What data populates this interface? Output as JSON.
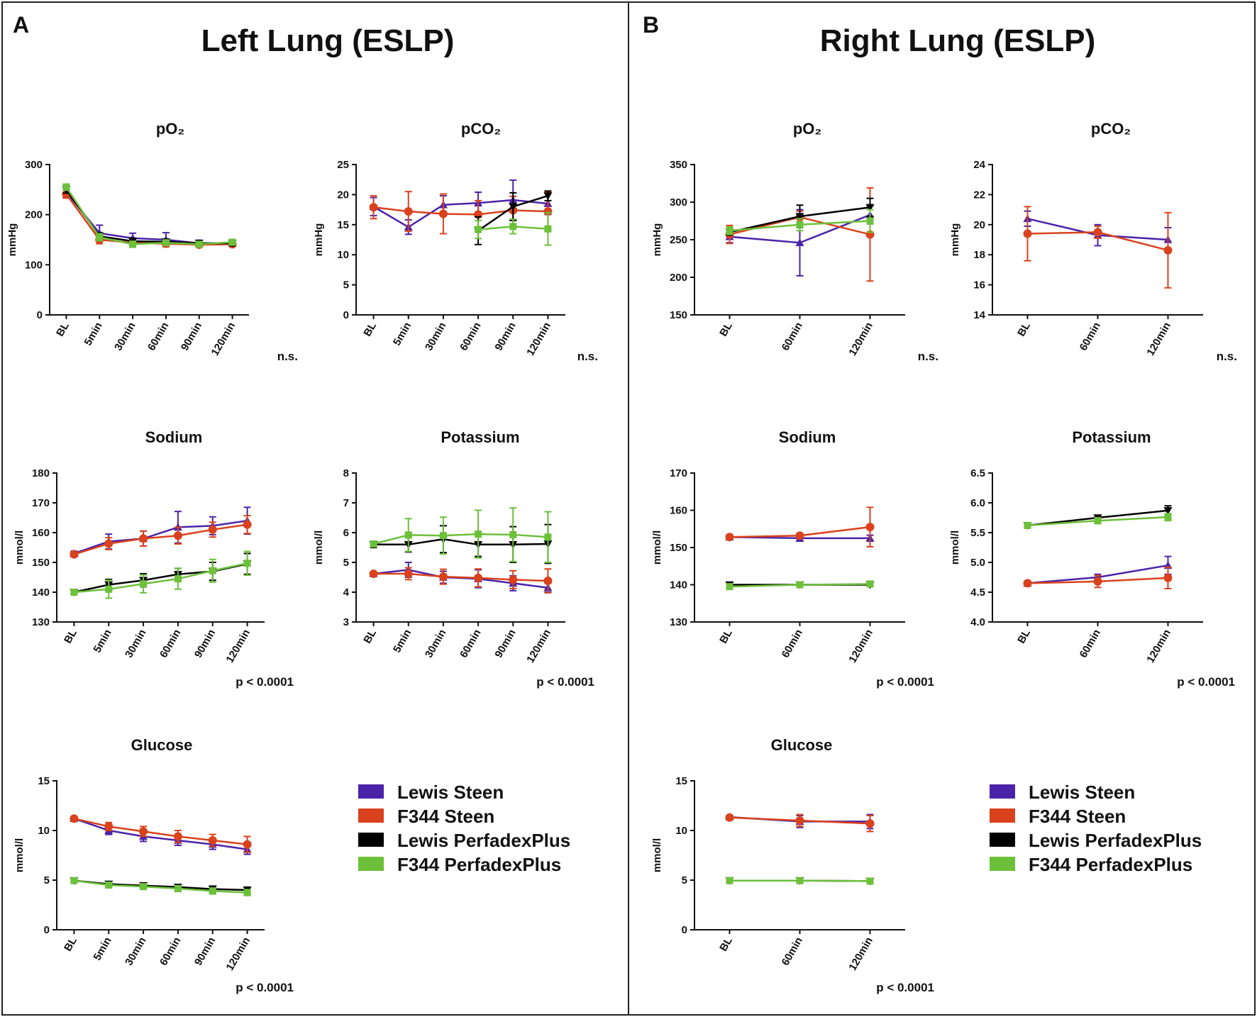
{
  "panels": [
    {
      "letter": "A",
      "title": "Left Lung (ESLP)"
    },
    {
      "letter": "B",
      "title": "Right Lung (ESLP)"
    }
  ],
  "legend": [
    {
      "label": "Lewis Steen",
      "color": "#4b23a8"
    },
    {
      "label": "F344 Steen",
      "color": "#d9421c"
    },
    {
      "label": "Lewis PerfadexPlus",
      "color": "#000000"
    },
    {
      "label": "F344 PerfadexPlus",
      "color": "#6cc03a"
    }
  ],
  "chart_data": [
    {
      "id": "A-po2",
      "panel": "A",
      "type": "line",
      "title": "pO₂",
      "ylabel": "mmHg",
      "sig": "n.s.",
      "categories": [
        "BL",
        "5min",
        "30min",
        "60min",
        "90min",
        "120min"
      ],
      "ylim": [
        0,
        300
      ],
      "yticks": [
        0,
        100,
        200,
        300
      ],
      "series": [
        {
          "name": "Lewis Steen",
          "color": "#4b23a8",
          "marker": "triangle",
          "values": [
            245,
            163,
            153,
            150,
            143,
            143
          ],
          "errors": [
            10,
            16,
            10,
            14,
            6,
            5
          ]
        },
        {
          "name": "F344 Steen",
          "color": "#d9421c",
          "marker": "circle",
          "values": [
            241,
            150,
            144,
            142,
            140,
            141
          ],
          "errors": [
            8,
            8,
            6,
            6,
            5,
            4
          ]
        },
        {
          "name": "Lewis PerfadexPlus",
          "color": "#000000",
          "marker": "triangle-down",
          "values": [
            250,
            157,
            147,
            146,
            143,
            143
          ],
          "errors": [
            7,
            7,
            6,
            5,
            5,
            5
          ]
        },
        {
          "name": "F344 PerfadexPlus",
          "color": "#6cc03a",
          "marker": "square",
          "values": [
            255,
            155,
            141,
            144,
            141,
            145
          ],
          "errors": [
            6,
            7,
            6,
            5,
            4,
            4
          ]
        }
      ]
    },
    {
      "id": "A-pco2",
      "panel": "A",
      "type": "line",
      "title": "pCO₂",
      "ylabel": "mmHg",
      "sig": "n.s.",
      "categories": [
        "BL",
        "5min",
        "30min",
        "60min",
        "90min",
        "120min"
      ],
      "ylim": [
        0,
        25
      ],
      "yticks": [
        0,
        5,
        10,
        15,
        20,
        25
      ],
      "series": [
        {
          "name": "Lewis Steen",
          "color": "#4b23a8",
          "marker": "triangle",
          "values": [
            18,
            14.6,
            18.3,
            18.6,
            19.1,
            18.5
          ],
          "errors": [
            1.5,
            1.2,
            1.5,
            1.8,
            3.3,
            1.8
          ]
        },
        {
          "name": "F344 Steen",
          "color": "#d9421c",
          "marker": "circle",
          "values": [
            17.9,
            17.2,
            16.8,
            16.7,
            17.4,
            17.2
          ],
          "errors": [
            1.9,
            3.3,
            3.3,
            2.3,
            2.3,
            3.2
          ]
        },
        {
          "name": "Lewis PerfadexPlus",
          "color": "#000000",
          "marker": "triangle-down",
          "values": [
            null,
            null,
            null,
            14.0,
            18.0,
            19.8
          ],
          "errors": [
            0,
            0,
            0,
            2.3,
            2.3,
            0.8
          ]
        },
        {
          "name": "F344 PerfadexPlus",
          "color": "#6cc03a",
          "marker": "square",
          "values": [
            null,
            null,
            null,
            14.2,
            14.7,
            14.3
          ],
          "errors": [
            0,
            0,
            0,
            1.5,
            1.2,
            2.7
          ]
        }
      ]
    },
    {
      "id": "B-po2",
      "panel": "B",
      "type": "line",
      "title": "pO₂",
      "ylabel": "mmHg",
      "sig": "n.s.",
      "categories": [
        "BL",
        "60min",
        "120min"
      ],
      "ylim": [
        150,
        350
      ],
      "yticks": [
        150,
        200,
        250,
        300,
        350
      ],
      "series": [
        {
          "name": "Lewis Steen",
          "color": "#4b23a8",
          "marker": "triangle",
          "values": [
            254,
            246,
            283
          ],
          "errors": [
            8,
            44,
            12
          ]
        },
        {
          "name": "F344 Steen",
          "color": "#d9421c",
          "marker": "circle",
          "values": [
            257,
            280,
            257
          ],
          "errors": [
            12,
            8,
            62
          ]
        },
        {
          "name": "Lewis PerfadexPlus",
          "color": "#000000",
          "marker": "triangle-down",
          "values": [
            260,
            281,
            293
          ],
          "errors": [
            4,
            15,
            12
          ]
        },
        {
          "name": "F344 PerfadexPlus",
          "color": "#6cc03a",
          "marker": "square",
          "values": [
            262,
            270,
            275
          ],
          "errors": [
            5,
            8,
            15
          ]
        }
      ]
    },
    {
      "id": "B-pco2",
      "panel": "B",
      "type": "line",
      "title": "pCO₂",
      "ylabel": "mmHg",
      "sig": "n.s.",
      "categories": [
        "BL",
        "60min",
        "120min"
      ],
      "ylim": [
        14,
        24
      ],
      "yticks": [
        14,
        16,
        18,
        20,
        22,
        24
      ],
      "series": [
        {
          "name": "Lewis Steen",
          "color": "#4b23a8",
          "marker": "triangle",
          "values": [
            20.4,
            19.3,
            19.0
          ],
          "errors": [
            0.5,
            0.7,
            0.8
          ]
        },
        {
          "name": "F344 Steen",
          "color": "#d9421c",
          "marker": "circle",
          "values": [
            19.4,
            19.5,
            18.3
          ],
          "errors": [
            1.8,
            0.4,
            2.5
          ]
        }
      ]
    },
    {
      "id": "A-sodium",
      "panel": "A",
      "type": "line",
      "title": "Sodium",
      "ylabel": "mmol/l",
      "sig": "p < 0.0001",
      "categories": [
        "BL",
        "5min",
        "30min",
        "60min",
        "90min",
        "120min"
      ],
      "ylim": [
        130,
        180
      ],
      "yticks": [
        130,
        140,
        150,
        160,
        170,
        180
      ],
      "series": [
        {
          "name": "Lewis Steen",
          "color": "#4b23a8",
          "marker": "triangle",
          "values": [
            153,
            157,
            158,
            161.8,
            162.3,
            164
          ],
          "errors": [
            0.8,
            2.5,
            2.5,
            5.3,
            3.0,
            4.5
          ]
        },
        {
          "name": "F344 Steen",
          "color": "#d9421c",
          "marker": "circle",
          "values": [
            152.7,
            156.3,
            158,
            159,
            161,
            162.7
          ],
          "errors": [
            0.8,
            2.0,
            2.5,
            2.8,
            2.5,
            3.0
          ]
        },
        {
          "name": "Lewis PerfadexPlus",
          "color": "#000000",
          "marker": "triangle-down",
          "values": [
            140,
            142.5,
            144,
            146,
            147,
            149.5
          ],
          "errors": [
            0.5,
            1.8,
            2.2,
            2.0,
            3.0,
            3.5
          ]
        },
        {
          "name": "F344 PerfadexPlus",
          "color": "#6cc03a",
          "marker": "square",
          "values": [
            140,
            141,
            142.8,
            144.5,
            147.2,
            149.7
          ],
          "errors": [
            0.5,
            3.0,
            3.0,
            3.5,
            3.8,
            4.0
          ]
        }
      ]
    },
    {
      "id": "A-potassium",
      "panel": "A",
      "type": "line",
      "title": "Potassium",
      "ylabel": "mmol/l",
      "sig": "p < 0.0001",
      "categories": [
        "BL",
        "5min",
        "30min",
        "60min",
        "90min",
        "120min"
      ],
      "ylim": [
        3,
        8
      ],
      "yticks": [
        3,
        4,
        5,
        6,
        7,
        8
      ],
      "series": [
        {
          "name": "Lewis Steen",
          "color": "#4b23a8",
          "marker": "triangle",
          "values": [
            4.62,
            4.75,
            4.5,
            4.45,
            4.3,
            4.15
          ],
          "errors": [
            0.05,
            0.25,
            0.2,
            0.3,
            0.25,
            0.15
          ]
        },
        {
          "name": "F344 Steen",
          "color": "#d9421c",
          "marker": "circle",
          "values": [
            4.62,
            4.62,
            4.52,
            4.48,
            4.42,
            4.38
          ],
          "errors": [
            0.05,
            0.2,
            0.25,
            0.3,
            0.3,
            0.4
          ]
        },
        {
          "name": "Lewis PerfadexPlus",
          "color": "#000000",
          "marker": "triangle-down",
          "values": [
            5.6,
            5.6,
            5.78,
            5.6,
            5.6,
            5.62
          ],
          "errors": [
            0.1,
            0.25,
            0.45,
            0.4,
            0.6,
            0.65
          ]
        },
        {
          "name": "F344 PerfadexPlus",
          "color": "#6cc03a",
          "marker": "square",
          "values": [
            5.62,
            5.92,
            5.9,
            5.95,
            5.93,
            5.85
          ],
          "errors": [
            0.05,
            0.55,
            0.62,
            0.8,
            0.9,
            0.85
          ]
        }
      ]
    },
    {
      "id": "B-sodium",
      "panel": "B",
      "type": "line",
      "title": "Sodium",
      "ylabel": "mmol/l",
      "sig": "p < 0.0001",
      "categories": [
        "BL",
        "60min",
        "120min"
      ],
      "ylim": [
        130,
        170
      ],
      "yticks": [
        130,
        140,
        150,
        160,
        170
      ],
      "series": [
        {
          "name": "Lewis Steen",
          "color": "#4b23a8",
          "marker": "triangle",
          "values": [
            152.8,
            152.5,
            152.5
          ],
          "errors": [
            0.6,
            0.8,
            0.8
          ]
        },
        {
          "name": "F344 Steen",
          "color": "#d9421c",
          "marker": "circle",
          "values": [
            152.8,
            153.2,
            155.5
          ],
          "errors": [
            0.6,
            0.6,
            5.3
          ]
        },
        {
          "name": "Lewis PerfadexPlus",
          "color": "#000000",
          "marker": "triangle-down",
          "values": [
            140,
            140,
            140
          ],
          "errors": [
            0.5,
            0.5,
            0.5
          ]
        },
        {
          "name": "F344 PerfadexPlus",
          "color": "#6cc03a",
          "marker": "square",
          "values": [
            139.5,
            140,
            140.2
          ],
          "errors": [
            0.5,
            0.5,
            0.5
          ]
        }
      ]
    },
    {
      "id": "B-potassium",
      "panel": "B",
      "type": "line",
      "title": "Potassium",
      "ylabel": "mmol/l",
      "sig": "p < 0.0001",
      "categories": [
        "BL",
        "60min",
        "120min"
      ],
      "ylim": [
        4.0,
        6.5
      ],
      "yticks": [
        "4.0",
        "4.5",
        "5.0",
        "5.5",
        "6.0",
        "6.5"
      ],
      "series": [
        {
          "name": "Lewis Steen",
          "color": "#4b23a8",
          "marker": "triangle",
          "values": [
            4.65,
            4.75,
            4.95
          ],
          "errors": [
            0.04,
            0.05,
            0.15
          ]
        },
        {
          "name": "F344 Steen",
          "color": "#d9421c",
          "marker": "circle",
          "values": [
            4.65,
            4.68,
            4.74
          ],
          "errors": [
            0.04,
            0.1,
            0.18
          ]
        },
        {
          "name": "Lewis PerfadexPlus",
          "color": "#000000",
          "marker": "triangle-down",
          "values": [
            5.62,
            5.75,
            5.87
          ],
          "errors": [
            0.03,
            0.03,
            0.08
          ]
        },
        {
          "name": "F344 PerfadexPlus",
          "color": "#6cc03a",
          "marker": "square",
          "values": [
            5.62,
            5.7,
            5.76
          ],
          "errors": [
            0.03,
            0.05,
            0.06
          ]
        }
      ]
    },
    {
      "id": "A-glucose",
      "panel": "A",
      "type": "line",
      "title": "Glucose",
      "ylabel": "mmol/l",
      "sig": "p < 0.0001",
      "categories": [
        "BL",
        "5min",
        "30min",
        "60min",
        "90min",
        "120min"
      ],
      "ylim": [
        0,
        15
      ],
      "yticks": [
        0,
        5,
        10,
        15
      ],
      "series": [
        {
          "name": "Lewis Steen",
          "color": "#4b23a8",
          "marker": "triangle",
          "values": [
            11.2,
            10.0,
            9.4,
            9.0,
            8.6,
            8.1
          ],
          "errors": [
            0.2,
            0.4,
            0.5,
            0.5,
            0.5,
            0.5
          ]
        },
        {
          "name": "F344 Steen",
          "color": "#d9421c",
          "marker": "circle",
          "values": [
            11.2,
            10.4,
            9.9,
            9.4,
            9.0,
            8.6
          ],
          "errors": [
            0.2,
            0.4,
            0.5,
            0.6,
            0.6,
            0.8
          ]
        },
        {
          "name": "Lewis PerfadexPlus",
          "color": "#000000",
          "marker": "triangle-down",
          "values": [
            4.95,
            4.6,
            4.45,
            4.3,
            4.1,
            4.0
          ],
          "errors": [
            0.1,
            0.2,
            0.2,
            0.2,
            0.3,
            0.3
          ]
        },
        {
          "name": "F344 PerfadexPlus",
          "color": "#6cc03a",
          "marker": "square",
          "values": [
            4.95,
            4.5,
            4.35,
            4.15,
            3.9,
            3.75
          ],
          "errors": [
            0.1,
            0.2,
            0.2,
            0.3,
            0.3,
            0.3
          ]
        }
      ]
    },
    {
      "id": "B-glucose",
      "panel": "B",
      "type": "line",
      "title": "Glucose",
      "ylabel": "mmol/l",
      "sig": "p < 0.0001",
      "categories": [
        "BL",
        "60min",
        "120min"
      ],
      "ylim": [
        0,
        15
      ],
      "yticks": [
        0,
        5,
        10,
        15
      ],
      "series": [
        {
          "name": "Lewis Steen",
          "color": "#4b23a8",
          "marker": "triangle",
          "values": [
            11.35,
            10.9,
            10.9
          ],
          "errors": [
            0.15,
            0.6,
            0.7
          ]
        },
        {
          "name": "F344 Steen",
          "color": "#d9421c",
          "marker": "circle",
          "values": [
            11.3,
            11.0,
            10.7
          ],
          "errors": [
            0.15,
            0.6,
            0.8
          ]
        },
        {
          "name": "Lewis PerfadexPlus",
          "color": "#000000",
          "marker": "triangle-down",
          "values": [
            4.95,
            4.95,
            4.9
          ],
          "errors": [
            0.1,
            0.1,
            0.1
          ]
        },
        {
          "name": "F344 PerfadexPlus",
          "color": "#6cc03a",
          "marker": "square",
          "values": [
            4.95,
            4.95,
            4.9
          ],
          "errors": [
            0.1,
            0.1,
            0.1
          ]
        }
      ]
    }
  ]
}
